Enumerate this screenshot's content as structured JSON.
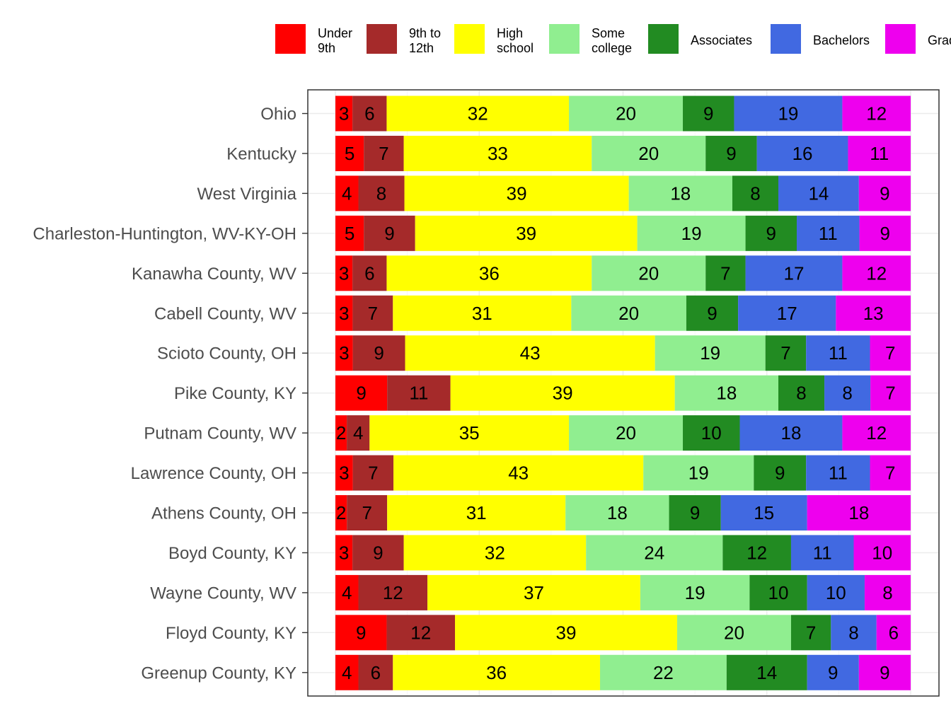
{
  "chart_data": {
    "type": "bar",
    "orientation": "horizontal",
    "stacked": true,
    "grid": true,
    "legend_position": "top",
    "categories": [
      "Ohio",
      "Kentucky",
      "West Virginia",
      "Charleston-Huntington, WV-KY-OH",
      "Kanawha County, WV",
      "Cabell County, WV",
      "Scioto County, OH",
      "Pike County, KY",
      "Putnam County, WV",
      "Lawrence County, OH",
      "Athens County, OH",
      "Boyd County, KY",
      "Wayne County, WV",
      "Floyd County, KY",
      "Greenup County, KY"
    ],
    "series": [
      {
        "name": "Under 9th",
        "legend_lines": [
          "Under",
          "9th"
        ],
        "color": "#ff0000",
        "values": [
          3,
          5,
          4,
          5,
          3,
          3,
          3,
          9,
          2,
          3,
          2,
          3,
          4,
          9,
          4
        ]
      },
      {
        "name": "9th to 12th",
        "legend_lines": [
          "9th to",
          "12th"
        ],
        "color": "#a52a2a",
        "values": [
          6,
          7,
          8,
          9,
          6,
          7,
          9,
          11,
          4,
          7,
          7,
          9,
          12,
          12,
          6
        ]
      },
      {
        "name": "High school",
        "legend_lines": [
          "High",
          "school"
        ],
        "color": "#ffff00",
        "values": [
          32,
          33,
          39,
          39,
          36,
          31,
          43,
          39,
          35,
          43,
          31,
          32,
          37,
          39,
          36
        ]
      },
      {
        "name": "Some college",
        "legend_lines": [
          "Some",
          "college"
        ],
        "color": "#90ee90",
        "values": [
          20,
          20,
          18,
          19,
          20,
          20,
          19,
          18,
          20,
          19,
          18,
          24,
          19,
          20,
          22
        ]
      },
      {
        "name": "Associates",
        "legend_lines": [
          "Associates"
        ],
        "color": "#228b22",
        "values": [
          9,
          9,
          8,
          9,
          7,
          9,
          7,
          8,
          10,
          9,
          9,
          12,
          10,
          7,
          14
        ]
      },
      {
        "name": "Bachelors",
        "legend_lines": [
          "Bachelors"
        ],
        "color": "#4169e1",
        "values": [
          19,
          16,
          14,
          11,
          17,
          17,
          11,
          8,
          18,
          11,
          15,
          11,
          10,
          8,
          9
        ]
      },
      {
        "name": "Graduate",
        "legend_lines": [
          "Graduate"
        ],
        "color": "#ee00ee",
        "values": [
          12,
          11,
          9,
          9,
          12,
          13,
          7,
          7,
          12,
          7,
          18,
          10,
          8,
          6,
          9
        ]
      }
    ],
    "xlim": [
      0,
      100
    ]
  }
}
